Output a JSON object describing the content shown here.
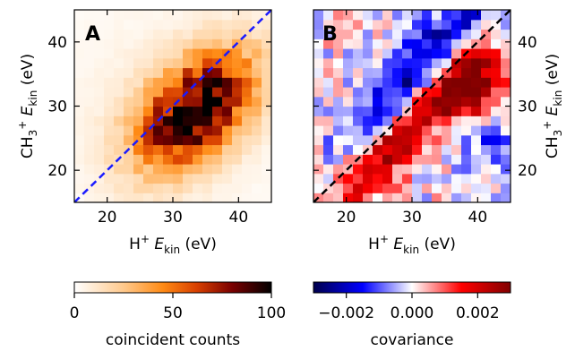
{
  "chart_data": [
    {
      "type": "heatmap",
      "panel_label": "A",
      "xlabel_main": "H",
      "xlabel_sup": "+",
      "xlabel_var": "E",
      "xlabel_sub": "kin",
      "xlabel_unit": "(eV)",
      "ylabel_main": "CH",
      "ylabel_sub1": "3",
      "ylabel_sup": "+",
      "ylabel_var": "E",
      "ylabel_sub2": "kin",
      "ylabel_unit": "(eV)",
      "xlim": [
        15,
        45
      ],
      "ylim": [
        15,
        45
      ],
      "x_ticks": [
        20,
        30,
        40
      ],
      "y_ticks": [
        20,
        30,
        40
      ],
      "x_tick_labels": [
        "20",
        "30",
        "40"
      ],
      "y_tick_labels": [
        "20",
        "30",
        "40"
      ],
      "bin_width_eV": 1.5,
      "diagonal": {
        "x": [
          15,
          45
        ],
        "y": [
          15,
          45
        ],
        "color": "#1a1aff",
        "style": "dashed"
      },
      "colormap": "gist_heat_r",
      "value_range": [
        0,
        100
      ],
      "peak": {
        "x": 33.5,
        "y": 29.5,
        "value": 100
      },
      "colorbar": {
        "label": "coincident counts",
        "ticks": [
          0,
          50,
          100
        ],
        "tick_labels": [
          "0",
          "50",
          "100"
        ]
      }
    },
    {
      "type": "heatmap",
      "panel_label": "B",
      "xlabel_main": "H",
      "xlabel_sup": "+",
      "xlabel_var": "E",
      "xlabel_sub": "kin",
      "xlabel_unit": "(eV)",
      "ylabel_main": "CH",
      "ylabel_sub1": "3",
      "ylabel_sup": "+",
      "ylabel_var": "E",
      "ylabel_sub2": "kin",
      "ylabel_unit": "(eV)",
      "xlim": [
        15,
        45
      ],
      "ylim": [
        15,
        45
      ],
      "x_ticks": [
        20,
        30,
        40
      ],
      "y_ticks": [
        20,
        30,
        40
      ],
      "x_tick_labels": [
        "20",
        "30",
        "40"
      ],
      "y_tick_labels": [
        "20",
        "30",
        "40"
      ],
      "bin_width_eV": 1.5,
      "diagonal": {
        "x": [
          15,
          45
        ],
        "y": [
          15,
          45
        ],
        "color": "#000000",
        "style": "dashed"
      },
      "colormap": "seismic",
      "value_range": [
        -0.003,
        0.003
      ],
      "regions": [
        {
          "description": "negative band above diagonal",
          "center": [
            33,
            32
          ],
          "value": -0.0025
        },
        {
          "description": "positive band below diagonal",
          "center": [
            27,
            25
          ],
          "value": 0.0025
        },
        {
          "description": "positive peak",
          "center": [
            39,
            33
          ],
          "value": 0.003
        }
      ],
      "colorbar": {
        "label": "covariance",
        "ticks": [
          -0.002,
          0.0,
          0.002
        ],
        "tick_labels": [
          "−0.002",
          "0.000",
          "0.002"
        ]
      }
    }
  ]
}
